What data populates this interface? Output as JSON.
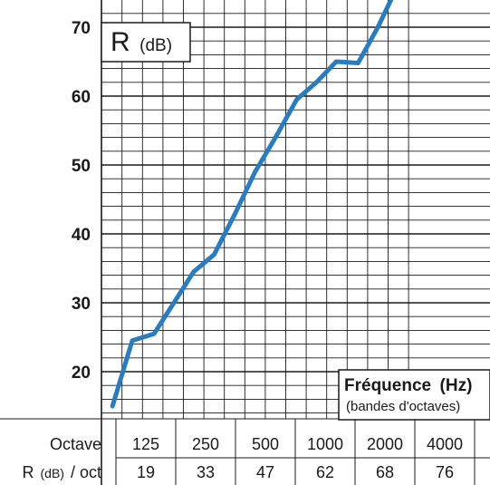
{
  "chart_data": {
    "type": "line",
    "title_main": "R",
    "title_unit": "(dB)",
    "xlabel_main": "Fréquence",
    "xlabel_unit": "(Hz)",
    "xlabel_sub": "(bandes d'octaves)",
    "ylim": [
      14,
      70
    ],
    "yticks": [
      "20",
      "30",
      "40",
      "50",
      "60",
      "70"
    ],
    "ytick_values": [
      20,
      30,
      40,
      50,
      60,
      70
    ],
    "grid": true,
    "line_color": "#2b7bbf",
    "series": [
      {
        "x": [
          100,
          125,
          160,
          200,
          250,
          315,
          400,
          500,
          630,
          800,
          1000,
          1250,
          1600,
          2000,
          2500
        ],
        "y": [
          15,
          24.5,
          25.5,
          30,
          34.5,
          37,
          43,
          49,
          54,
          59.5,
          62,
          65,
          64.8,
          70,
          76
        ]
      }
    ],
    "table": {
      "row1_label": "Octave",
      "row2_label_main": "R",
      "row2_label_unit": "(dB)",
      "row2_label_tail": "/ oct",
      "octaves": [
        "125",
        "250",
        "500",
        "1000",
        "2000",
        "4000"
      ],
      "r_values": [
        "19",
        "33",
        "47",
        "62",
        "68",
        "76"
      ]
    }
  }
}
